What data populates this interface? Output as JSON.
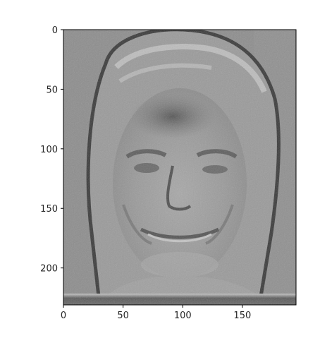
{
  "figure": {
    "image_description_icon": "grayscale-face-image-icon"
  },
  "axes": {
    "x": {
      "ticks": [
        0,
        50,
        100,
        150
      ],
      "range": [
        0,
        195
      ],
      "labels": [
        "0",
        "50",
        "100",
        "150"
      ]
    },
    "y": {
      "ticks": [
        0,
        50,
        100,
        150,
        200
      ],
      "range": [
        0,
        231
      ],
      "labels": [
        "0",
        "50",
        "100",
        "150",
        "200"
      ]
    }
  },
  "colors": {
    "background": "#8c8c8c",
    "axis": "#000000",
    "text": "#262626"
  }
}
